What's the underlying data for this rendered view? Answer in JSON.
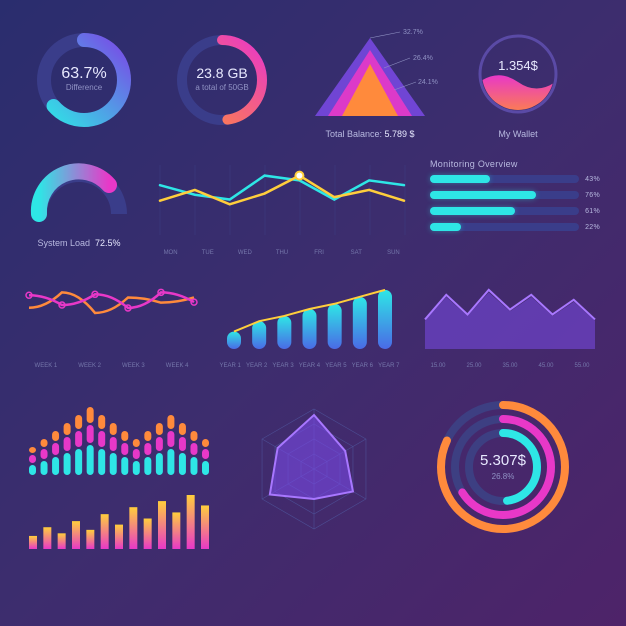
{
  "palette": {
    "bg_from": "#2a2d6e",
    "bg_to": "#4e2369",
    "cyan": "#2ee6e6",
    "magenta": "#e838c8",
    "orange": "#ff8a3c",
    "yellow": "#ffce3c",
    "purple": "#7a4ae6",
    "blue": "#4a6ae6",
    "pink": "#ff5ec8",
    "text": "#e8e9ff",
    "muted": "#9092c4"
  },
  "donut1": {
    "value": "63.7%",
    "label": "Difference",
    "arc_pct": 63.7,
    "color_from": "#2ee6e6",
    "color_to": "#7a4ae6",
    "track": "#3a3d8a"
  },
  "donut2": {
    "value": "23.8 GB",
    "label": "a total of 50GB",
    "arc_pct": 47.6,
    "color_from": "#ff8a3c",
    "color_to": "#e838c8",
    "track": "#3a3d8a"
  },
  "pyramid": {
    "labels": [
      "32.7%",
      "26.4%",
      "24.1%"
    ],
    "colors": [
      "#7a4ae6",
      "#e838c8",
      "#ff8a3c"
    ],
    "caption": "Total Balance:",
    "caption_val": "5.789 $"
  },
  "wallet": {
    "value": "1.354$",
    "label": "My Wallet",
    "wave_color_from": "#e838c8",
    "wave_color_to": "#ff8a3c",
    "ring": "#5a4aa6",
    "fill_pct": 45
  },
  "gauge": {
    "label": "System Load",
    "value": "72.5%",
    "pct": 72.5,
    "color_from": "#2ee6e6",
    "color_to": "#e838c8",
    "track": "#3a3d8a"
  },
  "line_week": {
    "labels": [
      "MON",
      "TUE",
      "WED",
      "THU",
      "FRI",
      "SAT",
      "SUN"
    ],
    "series1": {
      "y": [
        45,
        60,
        40,
        55,
        80,
        50,
        60,
        45
      ],
      "color": "#ffce3c"
    },
    "series2": {
      "y": [
        50,
        40,
        35,
        60,
        55,
        35,
        55,
        50
      ],
      "color": "#2ee6e6"
    },
    "grid": "#3d3f82"
  },
  "hbars": {
    "title": "Monitoring Overview",
    "items": [
      {
        "pct": 43,
        "color": "#2ee6e6"
      },
      {
        "pct": 76,
        "color": "#2ee6e6"
      },
      {
        "pct": 61,
        "color": "#2ee6e6"
      },
      {
        "pct": 22,
        "color": "#2ee6e6"
      }
    ]
  },
  "wave_weeks": {
    "labels": [
      "WEEK 1",
      "WEEK 2",
      "WEEK 3",
      "WEEK 4"
    ],
    "series1": {
      "y": [
        40,
        55,
        35,
        50,
        45,
        50
      ],
      "color": "#ff8a3c"
    },
    "series2": {
      "y": [
        55,
        45,
        56,
        42,
        58,
        48
      ],
      "color": "#e838c8"
    }
  },
  "bars_year": {
    "labels": [
      "YEAR 1",
      "YEAR 2",
      "YEAR 3",
      "YEAR 4",
      "YEAR 5",
      "YEAR 6",
      "YEAR 7"
    ],
    "values": [
      20,
      32,
      38,
      46,
      52,
      60,
      68
    ],
    "bar_from": "#2ee6e6",
    "bar_to": "#4a6ae6",
    "line": "#ffce3c"
  },
  "area_dollars": {
    "labels": [
      "15.00",
      "25.00",
      "35.00",
      "45.00",
      "55.00"
    ],
    "y": [
      30,
      55,
      35,
      60,
      40,
      55,
      35,
      50,
      30
    ],
    "color": "#7a4ae6",
    "line": "#a877ff"
  },
  "stacked_bars": {
    "cols": 16,
    "series": [
      {
        "y": [
          10,
          14,
          18,
          22,
          26,
          30,
          26,
          22,
          18,
          14,
          18,
          22,
          26,
          22,
          18,
          14
        ],
        "color": "#2ee6e6"
      },
      {
        "y": [
          8,
          10,
          12,
          14,
          16,
          18,
          16,
          14,
          12,
          10,
          12,
          14,
          16,
          14,
          12,
          10
        ],
        "color": "#e838c8"
      },
      {
        "y": [
          6,
          8,
          10,
          12,
          14,
          16,
          14,
          12,
          10,
          8,
          10,
          12,
          14,
          12,
          10,
          8
        ],
        "color": "#ff8a3c"
      }
    ]
  },
  "mini_bars": {
    "values": [
      15,
      25,
      18,
      32,
      22,
      40,
      28,
      48,
      35,
      55,
      42,
      62,
      50
    ],
    "color_from": "#e838c8",
    "color_to": "#ffce3c"
  },
  "radar": {
    "axes": 6,
    "values": [
      0.9,
      0.6,
      0.75,
      0.5,
      0.85,
      0.7
    ],
    "fill": "#7a4ae6",
    "stroke": "#a877ff",
    "grid": "#4d4f95"
  },
  "rings": {
    "value": "5.307$",
    "label": "26.8%",
    "rings": [
      {
        "pct": 82,
        "color": "#ff8a3c"
      },
      {
        "pct": 66,
        "color": "#e838c8"
      },
      {
        "pct": 48,
        "color": "#2ee6e6"
      }
    ],
    "track": "#3d3f82"
  }
}
